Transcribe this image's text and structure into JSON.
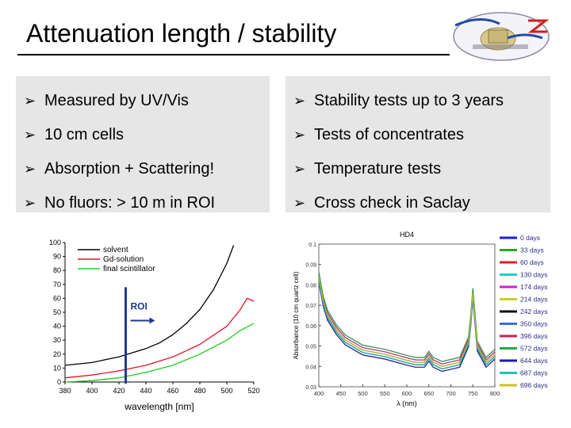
{
  "slide": {
    "title": "Attenuation length / stability",
    "logo_text": "DOUBLE CHOOZ"
  },
  "left_bullets": [
    "Measured by UV/Vis",
    "10 cm cells",
    "Absorption + Scattering!",
    "No fluors: > 10 m in ROI"
  ],
  "right_bullets": [
    "Stability tests up to 3 years",
    "Tests of concentrates",
    "Temperature tests",
    "Cross check in Saclay"
  ],
  "colors": {
    "bullet_bg": "#e6e6e6",
    "solvent": "#000000",
    "gd_solution": "#e8102a",
    "final_scintillator": "#22cc22",
    "roi_marker": "#1f3a93"
  },
  "chart_data": [
    {
      "type": "line",
      "title": "",
      "xlabel": "wavelength [nm]",
      "ylabel": "",
      "xlim": [
        380,
        520
      ],
      "ylim": [
        0,
        100
      ],
      "x_ticks": [
        "380",
        "400",
        "420",
        "440",
        "460",
        "480",
        "500",
        "520"
      ],
      "y_ticks": [
        "0",
        "10",
        "20",
        "30",
        "40",
        "50",
        "60",
        "70",
        "80",
        "90",
        "100"
      ],
      "annotation": "ROI",
      "roi_x": 425,
      "x": [
        380,
        390,
        400,
        410,
        420,
        430,
        440,
        450,
        460,
        470,
        480,
        490,
        500,
        505
      ],
      "series": [
        {
          "name": "solvent",
          "values": [
            12,
            13,
            14,
            16,
            18,
            21,
            24,
            28,
            34,
            42,
            52,
            66,
            85,
            98
          ]
        },
        {
          "name": "Gd-solution",
          "x": [
            380,
            400,
            420,
            440,
            460,
            480,
            500,
            510,
            515,
            520
          ],
          "values": [
            3,
            5,
            8,
            12,
            18,
            27,
            40,
            52,
            60,
            58
          ]
        },
        {
          "name": "final scintillator",
          "x": [
            380,
            400,
            420,
            440,
            460,
            480,
            500,
            510,
            520
          ],
          "values": [
            0,
            1,
            3,
            7,
            12,
            20,
            30,
            37,
            42
          ]
        }
      ]
    },
    {
      "type": "line",
      "title": "HD4",
      "xlabel": "λ (nm)",
      "ylabel": "Absorbance (10 cm quartz cell)",
      "xlim": [
        400,
        800
      ],
      "ylim": [
        0.03,
        0.1
      ],
      "x_ticks": [
        "400",
        "450",
        "500",
        "550",
        "600",
        "650",
        "700",
        "750",
        "800"
      ],
      "y_ticks": [
        "0.03",
        "0.04",
        "0.05",
        "0.06",
        "0.07",
        "0.08",
        "0.09",
        "0.1"
      ],
      "legend": [
        {
          "label": "0 days",
          "color": "#1a1aff"
        },
        {
          "label": "33 days",
          "color": "#22aa22"
        },
        {
          "label": "60 days",
          "color": "#e02020"
        },
        {
          "label": "130 days",
          "color": "#22cccc"
        },
        {
          "label": "174 days",
          "color": "#cc22cc"
        },
        {
          "label": "214 days",
          "color": "#cccc22"
        },
        {
          "label": "242 days",
          "color": "#111111"
        },
        {
          "label": "350 days",
          "color": "#3a6fd8"
        },
        {
          "label": "396 days",
          "color": "#c82060"
        },
        {
          "label": "572 days",
          "color": "#22aa44"
        },
        {
          "label": "644 days",
          "color": "#1a1aaa"
        },
        {
          "label": "687 days",
          "color": "#20c0c0"
        },
        {
          "label": "696 days",
          "color": "#c8c020"
        }
      ],
      "x": [
        400,
        410,
        420,
        440,
        460,
        500,
        550,
        600,
        620,
        640,
        650,
        660,
        680,
        700,
        720,
        740,
        745,
        750,
        760,
        780,
        800
      ],
      "base_values": [
        0.084,
        0.072,
        0.065,
        0.058,
        0.053,
        0.048,
        0.046,
        0.043,
        0.042,
        0.042,
        0.045,
        0.042,
        0.04,
        0.041,
        0.042,
        0.052,
        0.062,
        0.076,
        0.05,
        0.042,
        0.046
      ]
    }
  ]
}
